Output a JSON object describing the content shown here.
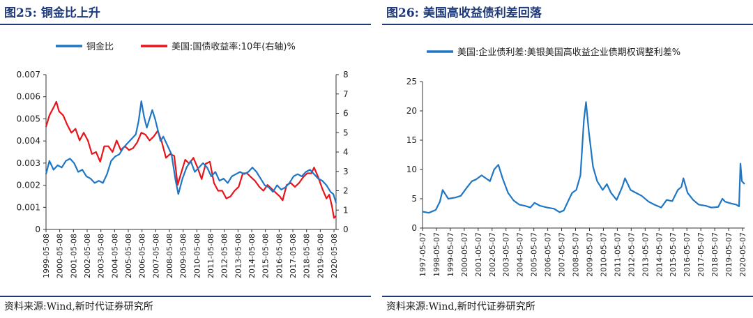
{
  "left_panel": {
    "title": "图25:  铜金比上升",
    "source": "资料来源:Wind,新时代证券研究所"
  },
  "right_panel": {
    "title": "图26:  美国高收益债利差回落",
    "source": "资料来源:Wind,新时代证券研究所"
  },
  "colors": {
    "blue": "#1f77c4",
    "red": "#e8141c",
    "title": "#1f3a7a"
  },
  "chart_data": [
    {
      "type": "line",
      "title": "铜金比上升",
      "x_ticks": [
        "1999-05-08",
        "2000-05-08",
        "2001-05-08",
        "2002-05-08",
        "2003-05-08",
        "2004-05-08",
        "2005-05-08",
        "2006-05-08",
        "2007-05-08",
        "2008-05-08",
        "2009-05-08",
        "2010-05-08",
        "2011-05-08",
        "2012-05-08",
        "2013-05-08",
        "2014-05-08",
        "2015-05-08",
        "2016-05-08",
        "2017-05-08",
        "2018-05-08",
        "2019-05-08",
        "2020-05-08"
      ],
      "y_left_ticks": [
        "0.007",
        "0.006",
        "0.005",
        "0.004",
        "0.003",
        "0.002",
        "0.001",
        "0"
      ],
      "y_right_ticks": [
        "8",
        "7",
        "6",
        "5",
        "4",
        "3",
        "2",
        "1",
        "0"
      ],
      "ylim_left": [
        0,
        0.007
      ],
      "ylim_right": [
        0,
        8
      ],
      "xlim": [
        1999.35,
        2020.5
      ],
      "series": [
        {
          "name": "铜金比",
          "axis": "left",
          "color": "#1f77c4",
          "x": [
            1999.35,
            1999.6,
            1999.9,
            2000.2,
            2000.5,
            2000.8,
            2001.1,
            2001.4,
            2001.7,
            2002.0,
            2002.3,
            2002.6,
            2002.9,
            2003.2,
            2003.5,
            2003.8,
            2004.1,
            2004.4,
            2004.7,
            2005.0,
            2005.3,
            2005.6,
            2005.9,
            2006.1,
            2006.3,
            2006.5,
            2006.7,
            2006.9,
            2007.1,
            2007.3,
            2007.5,
            2007.7,
            2007.9,
            2008.2,
            2008.5,
            2008.8,
            2009.0,
            2009.3,
            2009.6,
            2009.9,
            2010.2,
            2010.5,
            2010.8,
            2011.1,
            2011.4,
            2011.7,
            2012.0,
            2012.3,
            2012.6,
            2012.9,
            2013.2,
            2013.5,
            2013.8,
            2014.1,
            2014.4,
            2014.7,
            2015.0,
            2015.3,
            2015.6,
            2015.9,
            2016.2,
            2016.5,
            2016.8,
            2017.1,
            2017.4,
            2017.7,
            2018.0,
            2018.3,
            2018.6,
            2018.9,
            2019.2,
            2019.5,
            2019.8,
            2020.1,
            2020.3,
            2020.5
          ],
          "y": [
            0.0025,
            0.0031,
            0.0027,
            0.0029,
            0.0028,
            0.0031,
            0.0032,
            0.003,
            0.0026,
            0.0027,
            0.0024,
            0.0023,
            0.0021,
            0.0022,
            0.0021,
            0.0025,
            0.0031,
            0.0033,
            0.0034,
            0.0037,
            0.0039,
            0.0041,
            0.0043,
            0.0049,
            0.0058,
            0.0051,
            0.0046,
            0.005,
            0.0054,
            0.005,
            0.0045,
            0.004,
            0.0042,
            0.0038,
            0.0034,
            0.0022,
            0.0016,
            0.0023,
            0.0028,
            0.0031,
            0.0026,
            0.0028,
            0.003,
            0.0028,
            0.0024,
            0.0026,
            0.0022,
            0.0023,
            0.0021,
            0.0024,
            0.0025,
            0.0026,
            0.0025,
            0.0026,
            0.0028,
            0.0026,
            0.0023,
            0.002,
            0.0019,
            0.0017,
            0.002,
            0.0018,
            0.0019,
            0.0021,
            0.0024,
            0.0025,
            0.0024,
            0.0026,
            0.0027,
            0.0025,
            0.0023,
            0.0022,
            0.002,
            0.0017,
            0.0016,
            0.0012
          ]
        },
        {
          "name": "美国:国债收益率:10年(右轴)%",
          "axis": "right",
          "color": "#e8141c",
          "x": [
            1999.35,
            1999.6,
            1999.9,
            2000.1,
            2000.3,
            2000.6,
            2000.9,
            2001.2,
            2001.5,
            2001.8,
            2002.1,
            2002.4,
            2002.7,
            2003.0,
            2003.3,
            2003.6,
            2003.9,
            2004.2,
            2004.5,
            2004.8,
            2005.1,
            2005.4,
            2005.7,
            2006.0,
            2006.3,
            2006.6,
            2006.9,
            2007.2,
            2007.5,
            2007.8,
            2008.1,
            2008.4,
            2008.7,
            2008.95,
            2009.2,
            2009.5,
            2009.8,
            2010.1,
            2010.4,
            2010.7,
            2011.0,
            2011.3,
            2011.6,
            2011.9,
            2012.2,
            2012.5,
            2012.8,
            2013.1,
            2013.4,
            2013.7,
            2014.0,
            2014.3,
            2014.6,
            2014.9,
            2015.2,
            2015.5,
            2015.8,
            2016.1,
            2016.4,
            2016.6,
            2016.9,
            2017.2,
            2017.5,
            2017.8,
            2018.1,
            2018.4,
            2018.7,
            2018.9,
            2019.2,
            2019.5,
            2019.8,
            2020.0,
            2020.2,
            2020.35,
            2020.5
          ],
          "y": [
            5.3,
            5.9,
            6.3,
            6.6,
            6.1,
            5.9,
            5.4,
            5.0,
            5.2,
            4.6,
            5.0,
            4.6,
            3.9,
            4.0,
            3.5,
            4.3,
            4.3,
            4.0,
            4.6,
            4.1,
            4.3,
            4.1,
            4.2,
            4.5,
            5.0,
            4.9,
            4.6,
            4.8,
            5.1,
            4.5,
            3.7,
            3.9,
            3.8,
            2.3,
            2.9,
            3.6,
            3.4,
            3.7,
            3.2,
            2.6,
            3.4,
            3.5,
            2.4,
            2.0,
            2.0,
            1.6,
            1.7,
            2.0,
            2.2,
            2.9,
            2.9,
            2.7,
            2.5,
            2.2,
            2.0,
            2.3,
            2.1,
            1.9,
            1.7,
            1.5,
            2.3,
            2.4,
            2.2,
            2.4,
            2.7,
            2.9,
            2.9,
            3.2,
            2.7,
            2.1,
            1.6,
            1.8,
            1.2,
            0.6,
            0.7
          ]
        }
      ]
    },
    {
      "type": "line",
      "title": "美国高收益债利差回落",
      "x_ticks": [
        "1997-05-07",
        "1998-05-07",
        "1999-05-07",
        "2000-05-07",
        "2001-05-07",
        "2002-05-07",
        "2003-05-07",
        "2004-05-07",
        "2005-05-07",
        "2006-05-07",
        "2007-05-07",
        "2008-05-07",
        "2009-05-07",
        "2010-05-07",
        "2011-05-07",
        "2012-05-07",
        "2013-05-07",
        "2014-05-07",
        "2015-05-07",
        "2016-05-07",
        "2017-05-07",
        "2018-05-07",
        "2019-05-07",
        "2020-05-07"
      ],
      "y_ticks": [
        "25",
        "20",
        "15",
        "10",
        "5",
        "0"
      ],
      "ylim": [
        0,
        25
      ],
      "xlim": [
        1997.35,
        2020.5
      ],
      "series": [
        {
          "name": "美国:企业债利差:美银美国高收益企业债期权调整利差%",
          "color": "#1f77c4",
          "x": [
            1997.35,
            1997.8,
            1998.3,
            1998.6,
            1998.8,
            1999.2,
            1999.7,
            2000.1,
            2000.5,
            2000.9,
            2001.2,
            2001.6,
            2001.9,
            2002.2,
            2002.5,
            2002.8,
            2003.1,
            2003.5,
            2003.9,
            2004.3,
            2004.7,
            2005.1,
            2005.4,
            2005.8,
            2006.3,
            2006.8,
            2007.2,
            2007.5,
            2007.8,
            2008.1,
            2008.4,
            2008.7,
            2008.95,
            2009.1,
            2009.3,
            2009.6,
            2009.9,
            2010.3,
            2010.6,
            2010.9,
            2011.3,
            2011.7,
            2011.9,
            2012.3,
            2012.7,
            2013.1,
            2013.6,
            2014.0,
            2014.5,
            2014.9,
            2015.3,
            2015.7,
            2015.95,
            2016.1,
            2016.4,
            2016.8,
            2017.2,
            2017.7,
            2018.1,
            2018.6,
            2018.9,
            2019.1,
            2019.5,
            2019.9,
            2020.1,
            2020.2,
            2020.3,
            2020.5
          ],
          "y": [
            2.8,
            2.6,
            3.1,
            4.5,
            6.5,
            5.0,
            5.2,
            5.5,
            6.8,
            8.0,
            8.3,
            9.0,
            8.5,
            8.0,
            10.0,
            10.8,
            8.5,
            6.0,
            4.7,
            4.0,
            3.8,
            3.5,
            4.3,
            3.8,
            3.5,
            3.3,
            2.7,
            3.0,
            4.5,
            6.0,
            6.5,
            9.0,
            18.5,
            21.5,
            16.5,
            10.5,
            8.0,
            6.5,
            7.5,
            6.0,
            4.8,
            7.0,
            8.5,
            6.5,
            6.0,
            5.5,
            4.5,
            4.0,
            3.5,
            4.8,
            4.6,
            6.5,
            7.0,
            8.5,
            6.0,
            4.8,
            4.0,
            3.8,
            3.5,
            3.6,
            5.0,
            4.5,
            4.2,
            4.0,
            3.7,
            11.0,
            8.0,
            7.5
          ]
        }
      ]
    }
  ]
}
